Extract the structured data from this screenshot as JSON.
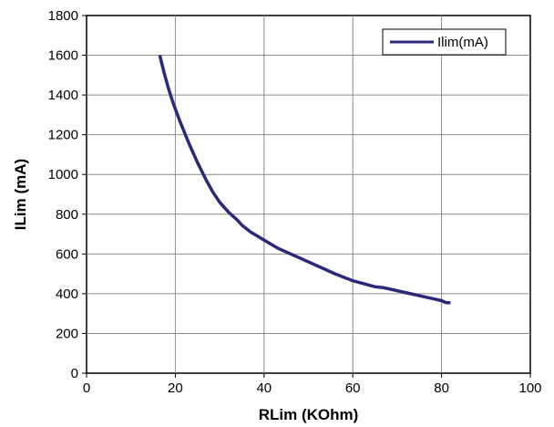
{
  "chart_data": {
    "type": "line",
    "title": "",
    "xlabel": "RLim (KOhm)",
    "ylabel": "ILim (mA)",
    "xlim": [
      0,
      100
    ],
    "ylim": [
      0,
      1800
    ],
    "xticks": [
      "0",
      "20",
      "40",
      "60",
      "80",
      "100"
    ],
    "yticks": [
      "0",
      "200",
      "400",
      "600",
      "800",
      "1000",
      "1200",
      "1400",
      "1600",
      "1800"
    ],
    "grid": true,
    "legend_position": "top-right",
    "series": [
      {
        "name": "Ilim(mA)",
        "color": "#2b2a7a",
        "x": [
          16.5,
          17.5,
          18.5,
          19.5,
          21,
          23,
          25,
          27,
          28.5,
          30,
          32,
          34,
          35,
          37,
          40,
          43,
          45,
          48,
          52,
          56,
          60,
          65,
          67,
          70,
          74,
          78,
          80,
          81,
          82
        ],
        "y": [
          1600,
          1510,
          1430,
          1360,
          1270,
          1160,
          1060,
          970,
          910,
          860,
          810,
          770,
          745,
          710,
          670,
          630,
          610,
          580,
          540,
          500,
          465,
          435,
          430,
          415,
          395,
          375,
          365,
          355,
          355
        ]
      }
    ]
  }
}
